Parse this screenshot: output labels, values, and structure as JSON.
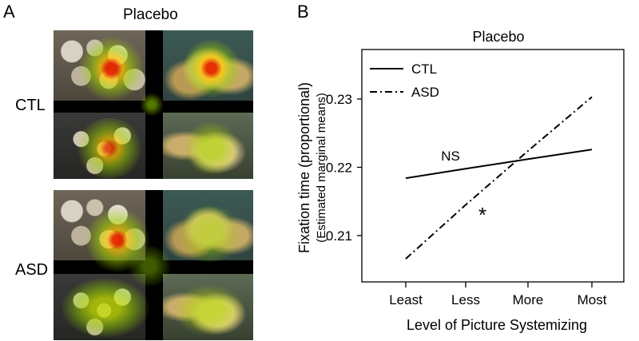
{
  "panel_a": {
    "letter": "A",
    "title": "Placebo",
    "row_labels": [
      "CTL",
      "ASD"
    ]
  },
  "panel_b": {
    "letter": "B"
  },
  "chart_data": {
    "type": "line",
    "title": "Placebo",
    "xlabel": "Level of Picture Systemizing",
    "ylabel_line1": "Fixation time (proportional)",
    "ylabel_line2": "(Estimated marginal means)",
    "categories": [
      "Least",
      "Less",
      "More",
      "Most"
    ],
    "ylim": [
      0.205,
      0.235
    ],
    "yticks": [
      0.21,
      0.22,
      0.23
    ],
    "ytick_labels": [
      "0.21",
      "0.22",
      "0.23"
    ],
    "series": [
      {
        "name": "CTL",
        "style": "solid",
        "values": [
          0.2184,
          0.2198,
          0.2212,
          0.2226
        ]
      },
      {
        "name": "ASD",
        "style": "dash-dot",
        "values": [
          0.2066,
          0.2145,
          0.2224,
          0.2303
        ]
      }
    ],
    "annotations": [
      {
        "text": "NS",
        "x": 1.3,
        "y": 0.2202
      },
      {
        "text": "*",
        "x": 1.7,
        "y": 0.2155
      }
    ],
    "legend_position": "top-left",
    "grid": false,
    "colors": {
      "line": "#000000",
      "background": "#ffffff"
    }
  }
}
